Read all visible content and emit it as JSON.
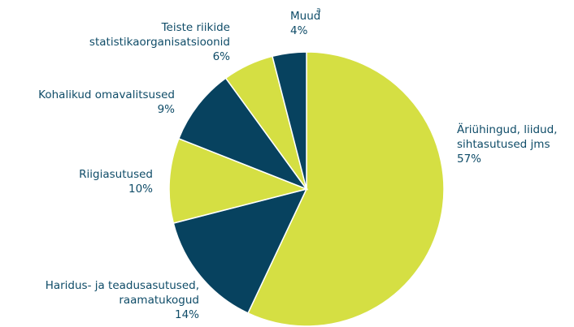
{
  "chart_data": {
    "type": "pie",
    "categories": [
      "Äriühingud, liidud,\nsihtasutused jms",
      "Haridus- ja teadusasutused,\nraamatukogud",
      "Riigiasutused",
      "Kohalikud omavalitsused",
      "Teiste riikide\nstatistikaorganisatsioonid",
      "Muud"
    ],
    "values": [
      57,
      14,
      10,
      9,
      6,
      4
    ],
    "value_labels": [
      "57%",
      "14%",
      "10%",
      "9%",
      "6%",
      "4%"
    ],
    "colors": [
      "#d5df43",
      "#07425f",
      "#d5df43",
      "#07425f",
      "#d5df43",
      "#07425f"
    ],
    "annotation": "a"
  }
}
